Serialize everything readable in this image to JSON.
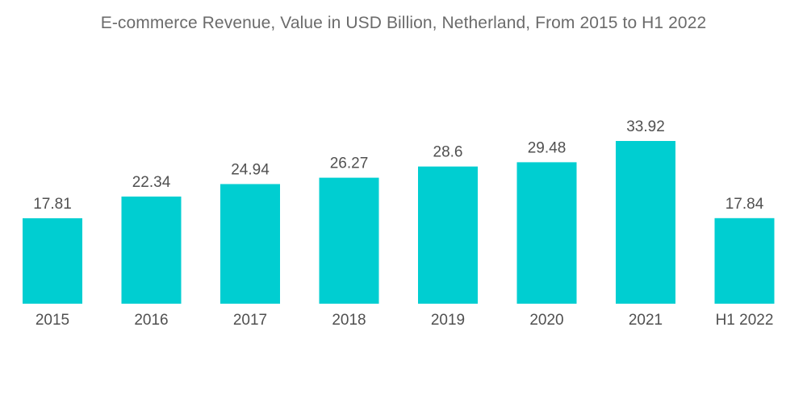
{
  "chart_data": {
    "type": "bar",
    "title": "E-commerce Revenue, Value in USD Billion, Netherland, From 2015 to H1 2022",
    "xlabel": "",
    "ylabel": "",
    "categories": [
      "2015",
      "2016",
      "2017",
      "2018",
      "2019",
      "2020",
      "2021",
      "H1 2022"
    ],
    "values": [
      17.81,
      22.34,
      24.94,
      26.27,
      28.6,
      29.48,
      33.92,
      17.84
    ],
    "value_labels": [
      "17.81",
      "22.34",
      "24.94",
      "26.27",
      "28.6",
      "29.48",
      "33.92",
      "17.84"
    ],
    "ylim": [
      0,
      33.92
    ],
    "grid": false,
    "legend": "none",
    "bar_color": "#00CED1"
  }
}
